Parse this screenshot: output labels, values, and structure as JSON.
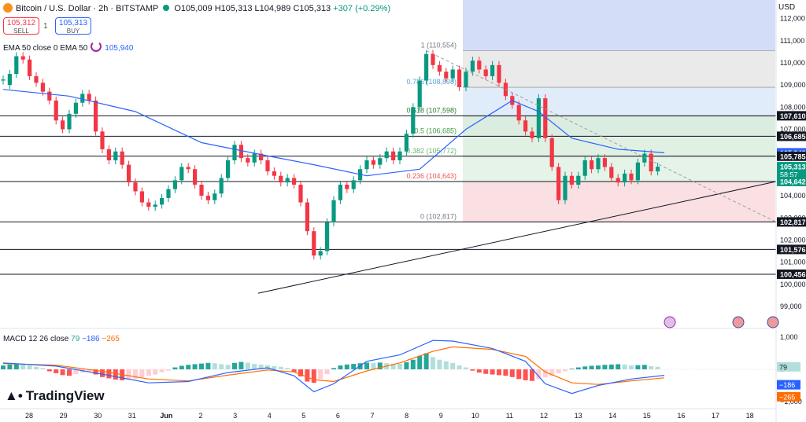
{
  "header": {
    "title": "Bitcoin / U.S. Dollar · 2h · BITSTAMP",
    "open": "O105,009",
    "high": "H105,313",
    "low": "L104,989",
    "close": "C105,313",
    "change": "+307 (+0.29%)",
    "sell_price": "105,312",
    "sell_label": "SELL",
    "qty": "1",
    "buy_price": "105,313",
    "buy_label": "BUY",
    "currency": "USD"
  },
  "indicators": {
    "ema_label": "EMA 50 close 0 EMA 50",
    "ema_value": "105,940",
    "macd_label": "MACD 12 26 close",
    "macd_hist": "79",
    "macd_line": "−186",
    "macd_signal": "−265"
  },
  "brand": {
    "logo_text": "TradingView"
  },
  "colors": {
    "up": "#089981",
    "down": "#f23645",
    "ema": "#2962ff",
    "macd": "#2962ff",
    "signal": "#ff6d00"
  },
  "chart_data": [
    {
      "type": "candlestick",
      "ylim": [
        99000,
        112500
      ],
      "x_ticks": [
        "28",
        "29",
        "30",
        "31",
        "Jun",
        "2",
        "3",
        "4",
        "5",
        "6",
        "7",
        "8",
        "9",
        "10",
        "11",
        "12",
        "13",
        "14",
        "15",
        "16",
        "17",
        "18"
      ],
      "y_ticks": [
        "112,000",
        "111,000",
        "110,000",
        "109,000",
        "108,000",
        "107,000",
        "106,000",
        "105,000",
        "104,000",
        "103,000",
        "102,000",
        "101,000",
        "100,000",
        "99,000"
      ],
      "ohlc_path": [
        [
          109200,
          109250
        ],
        [
          109000,
          109500
        ],
        [
          109500,
          110300
        ],
        [
          110300,
          110150
        ],
        [
          110150,
          109400
        ],
        [
          109400,
          109100
        ],
        [
          109100,
          108700
        ],
        [
          108700,
          108300
        ],
        [
          108300,
          107400
        ],
        [
          107400,
          107000
        ],
        [
          107000,
          107700
        ],
        [
          107700,
          108200
        ],
        [
          108200,
          108600
        ],
        [
          108600,
          108300
        ],
        [
          108300,
          106900
        ],
        [
          106900,
          106100
        ],
        [
          106100,
          105600
        ],
        [
          105600,
          106000
        ],
        [
          106000,
          105400
        ],
        [
          105400,
          104600
        ],
        [
          104600,
          104200
        ],
        [
          104200,
          103700
        ],
        [
          103700,
          103500
        ],
        [
          103500,
          103600
        ],
        [
          103600,
          103900
        ],
        [
          103900,
          104300
        ],
        [
          104300,
          104700
        ],
        [
          104700,
          105300
        ],
        [
          105300,
          105200
        ],
        [
          105200,
          104500
        ],
        [
          104500,
          104000
        ],
        [
          104000,
          103800
        ],
        [
          103800,
          104100
        ],
        [
          104100,
          104800
        ],
        [
          104800,
          105600
        ],
        [
          105600,
          106300
        ],
        [
          106300,
          105700
        ],
        [
          105700,
          105500
        ],
        [
          105500,
          105900
        ],
        [
          105900,
          105600
        ],
        [
          105600,
          105100
        ],
        [
          105100,
          104900
        ],
        [
          104900,
          104600
        ],
        [
          104600,
          104800
        ],
        [
          104800,
          104500
        ],
        [
          104500,
          103700
        ],
        [
          103700,
          102400
        ],
        [
          102400,
          101300
        ],
        [
          101300,
          101500
        ],
        [
          101500,
          102800
        ],
        [
          102800,
          103800
        ],
        [
          103800,
          104500
        ],
        [
          104500,
          104300
        ],
        [
          104300,
          104700
        ],
        [
          104700,
          105200
        ],
        [
          105200,
          105600
        ],
        [
          105600,
          105400
        ],
        [
          105400,
          105700
        ],
        [
          105700,
          106000
        ],
        [
          106000,
          105600
        ],
        [
          105600,
          106000
        ],
        [
          106000,
          106800
        ],
        [
          106800,
          108000
        ],
        [
          108000,
          109200
        ],
        [
          109200,
          110400
        ],
        [
          110400,
          109900
        ],
        [
          109900,
          109600
        ],
        [
          109600,
          109300
        ],
        [
          109300,
          109700
        ],
        [
          109700,
          108900
        ],
        [
          108900,
          109600
        ],
        [
          109600,
          110100
        ],
        [
          110100,
          109700
        ],
        [
          109700,
          109400
        ],
        [
          109400,
          109900
        ],
        [
          109900,
          109100
        ],
        [
          109100,
          108500
        ],
        [
          108500,
          108100
        ],
        [
          108100,
          107400
        ],
        [
          107400,
          106900
        ],
        [
          106900,
          106600
        ],
        [
          106600,
          108400
        ],
        [
          108400,
          106600
        ],
        [
          106600,
          105300
        ],
        [
          105300,
          103800
        ],
        [
          103800,
          104900
        ],
        [
          104900,
          104500
        ],
        [
          104500,
          104900
        ],
        [
          104900,
          105600
        ],
        [
          105600,
          105200
        ],
        [
          105200,
          105700
        ],
        [
          105700,
          105300
        ],
        [
          105300,
          104800
        ],
        [
          104800,
          104600
        ],
        [
          104600,
          105000
        ],
        [
          105000,
          104700
        ],
        [
          104700,
          105500
        ],
        [
          105500,
          105900
        ],
        [
          105900,
          105100
        ],
        [
          105100,
          105313
        ]
      ],
      "ema50": [
        [
          0,
          108800
        ],
        [
          10,
          108500
        ],
        [
          20,
          107800
        ],
        [
          30,
          106400
        ],
        [
          40,
          105800
        ],
        [
          47,
          105400
        ],
        [
          55,
          104900
        ],
        [
          63,
          105200
        ],
        [
          70,
          107000
        ],
        [
          77,
          108300
        ],
        [
          81,
          107800
        ],
        [
          86,
          106600
        ],
        [
          93,
          106100
        ],
        [
          100,
          105940
        ]
      ],
      "fibonacci": [
        {
          "level": "1",
          "price": 110554,
          "label": "1 (110,554)"
        },
        {
          "level": "0.786",
          "price": 108898,
          "label": "0.786 (108,898)"
        },
        {
          "level": "0.618",
          "price": 107598,
          "label": "0.618 (107,598)"
        },
        {
          "level": "0.5",
          "price": 106685,
          "label": "0.5 (106,685)"
        },
        {
          "level": "0.382",
          "price": 105772,
          "label": "0.382 (105,772)"
        },
        {
          "level": "0.236",
          "price": 104643,
          "label": "0.236 (104,643)"
        },
        {
          "level": "0",
          "price": 102817,
          "label": "0 (102,817)"
        }
      ],
      "horizontal_levels": [
        107610,
        106685,
        105785,
        104642,
        102817,
        101576,
        100456
      ],
      "axis_badges": [
        {
          "text": "107,610",
          "price": 107610,
          "color": "#131722"
        },
        {
          "text": "106,685",
          "price": 106685,
          "color": "#131722"
        },
        {
          "text": "105,940",
          "price": 105940,
          "color": "#2962ff"
        },
        {
          "text": "105,785",
          "price": 105785,
          "color": "#131722"
        },
        {
          "text": "105,313",
          "price": 105313,
          "color": "#089981",
          "subtext": "58:57"
        },
        {
          "text": "104,642",
          "price": 104642,
          "color": "#089981"
        },
        {
          "text": "102,817",
          "price": 102817,
          "color": "#131722"
        },
        {
          "text": "101,576",
          "price": 101576,
          "color": "#131722"
        },
        {
          "text": "100,456",
          "price": 100456,
          "color": "#131722"
        }
      ],
      "trendlines": [
        {
          "from": [
            -2,
            99600
          ],
          "to": [
            120,
            104642
          ]
        },
        {
          "from": [
            64,
            110554
          ],
          "to": [
            120,
            102817
          ],
          "dashed": true
        }
      ]
    },
    {
      "type": "macd",
      "ylim": [
        -1200,
        1200
      ],
      "y_ticks": [
        "1,000",
        "0",
        "−1,000"
      ],
      "histogram": [
        120,
        150,
        170,
        160,
        120,
        80,
        40,
        -60,
        -120,
        -180,
        -200,
        -150,
        -100,
        -60,
        -160,
        -240,
        -280,
        -320,
        -340,
        -330,
        -300,
        -250,
        -200,
        -160,
        -90,
        -40,
        60,
        110,
        140,
        160,
        180,
        200,
        190,
        160,
        140,
        200,
        230,
        210,
        170,
        150,
        130,
        100,
        80,
        40,
        -80,
        -220,
        -380,
        -420,
        -300,
        -150,
        40,
        120,
        150,
        170,
        190,
        210,
        200,
        210,
        190,
        180,
        170,
        220,
        300,
        420,
        500,
        380,
        300,
        250,
        200,
        120,
        60,
        -40,
        -100,
        -140,
        -160,
        -180,
        -200,
        -240,
        -300,
        -340,
        -360,
        -300,
        -250,
        -200,
        -120,
        -60,
        20,
        60,
        90,
        110,
        120,
        140,
        150,
        160,
        150,
        120,
        130,
        140,
        100,
        79
      ],
      "macd_line": [
        [
          0,
          200
        ],
        [
          8,
          100
        ],
        [
          15,
          -150
        ],
        [
          22,
          -420
        ],
        [
          28,
          -380
        ],
        [
          34,
          -100
        ],
        [
          40,
          50
        ],
        [
          44,
          -200
        ],
        [
          47,
          -700
        ],
        [
          50,
          -450
        ],
        [
          55,
          250
        ],
        [
          60,
          450
        ],
        [
          65,
          900
        ],
        [
          68,
          880
        ],
        [
          74,
          650
        ],
        [
          79,
          250
        ],
        [
          82,
          -450
        ],
        [
          86,
          -750
        ],
        [
          90,
          -500
        ],
        [
          95,
          -300
        ],
        [
          100,
          -186
        ]
      ],
      "signal_line": [
        [
          0,
          180
        ],
        [
          8,
          130
        ],
        [
          15,
          -60
        ],
        [
          22,
          -300
        ],
        [
          28,
          -360
        ],
        [
          34,
          -180
        ],
        [
          40,
          -20
        ],
        [
          44,
          -80
        ],
        [
          47,
          -320
        ],
        [
          50,
          -380
        ],
        [
          55,
          -50
        ],
        [
          60,
          200
        ],
        [
          65,
          560
        ],
        [
          68,
          700
        ],
        [
          74,
          620
        ],
        [
          79,
          400
        ],
        [
          82,
          -80
        ],
        [
          86,
          -420
        ],
        [
          90,
          -470
        ],
        [
          95,
          -360
        ],
        [
          100,
          -265
        ]
      ],
      "axis_badges": [
        {
          "text": "79",
          "value": 79,
          "color": "#b2dfdb",
          "dark_text": true
        },
        {
          "text": "−186",
          "value": -186,
          "color": "#2962ff"
        },
        {
          "text": "−265",
          "value": -265,
          "color": "#ff6d00"
        }
      ]
    }
  ]
}
